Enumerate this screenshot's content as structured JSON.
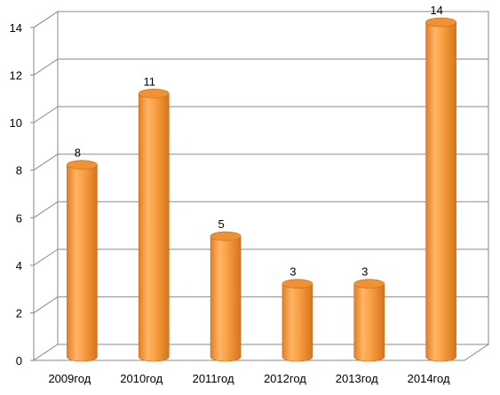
{
  "chart_data": {
    "type": "bar",
    "categories": [
      "2009год",
      "2010год",
      "2011год",
      "2012год",
      "2013год",
      "2014год"
    ],
    "values": [
      8,
      11,
      5,
      3,
      3,
      14
    ],
    "title": "",
    "xlabel": "",
    "ylabel": "",
    "ylim": [
      0,
      14
    ],
    "yticks": [
      "0",
      "2",
      "4",
      "6",
      "8",
      "10",
      "12",
      "14"
    ],
    "grid": true,
    "legend": "none",
    "style": "3d-cylinder",
    "colors": {
      "bar": "#f7a043",
      "bar_dark": "#d9781f",
      "bar_light": "#ffc88a",
      "grid": "#8a8a8a",
      "wall": "#ffffff"
    }
  }
}
